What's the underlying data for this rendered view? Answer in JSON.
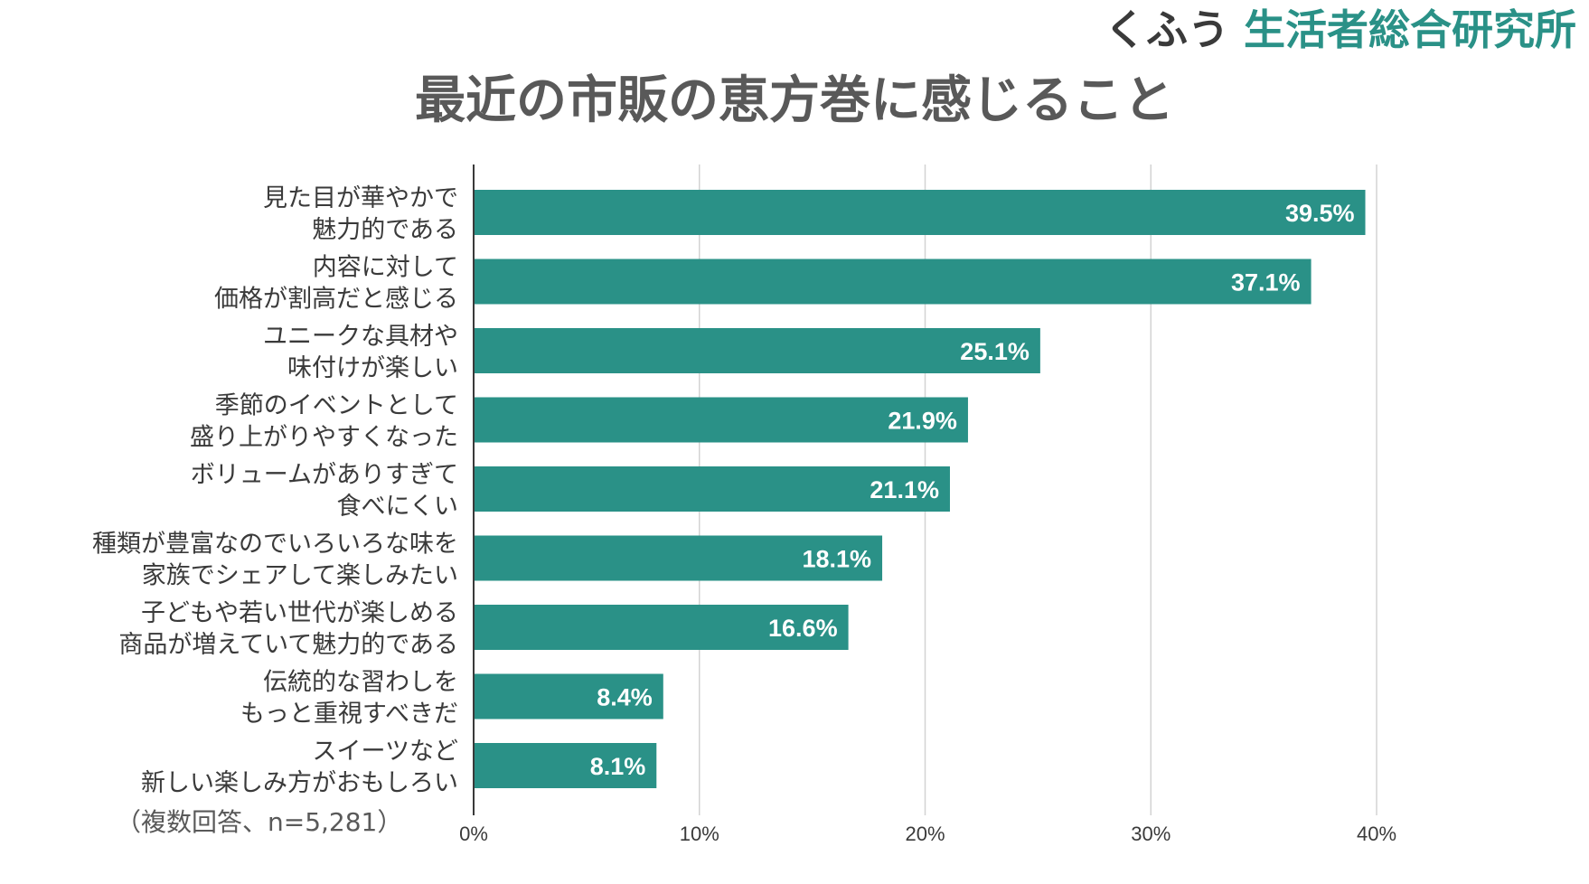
{
  "brand": {
    "prefix": "くふう",
    "name": "生活者総合研究所"
  },
  "note": "（複数回答、n=5,281）",
  "colors": {
    "bar": "#2a9187",
    "bar_label": "#ffffff",
    "category_text": "#3a3a3a",
    "tick_text": "#3a3a3a",
    "title": "#595959",
    "grid": "#d3d3d3",
    "axis": "#3a3a3a"
  },
  "chart_data": {
    "type": "bar",
    "orientation": "horizontal",
    "title": "最近の市販の恵方巻に感じること",
    "categories": [
      [
        "見た目が華やかで",
        "魅力的である"
      ],
      [
        "内容に対して",
        "価格が割高だと感じる"
      ],
      [
        "ユニークな具材や",
        "味付けが楽しい"
      ],
      [
        "季節のイベントとして",
        "盛り上がりやすくなった"
      ],
      [
        "ボリュームがありすぎて",
        "食べにくい"
      ],
      [
        "種類が豊富なのでいろいろな味を",
        "家族でシェアして楽しみたい"
      ],
      [
        "子どもや若い世代が楽しめる",
        "商品が増えていて魅力的である"
      ],
      [
        "伝統的な習わしを",
        "もっと重視すべきだ"
      ],
      [
        "スイーツなど",
        "新しい楽しみ方がおもしろい"
      ]
    ],
    "values": [
      39.5,
      37.1,
      25.1,
      21.9,
      21.1,
      18.1,
      16.6,
      8.4,
      8.1
    ],
    "value_labels": [
      "39.5%",
      "37.1%",
      "25.1%",
      "21.9%",
      "21.1%",
      "18.1%",
      "16.6%",
      "8.4%",
      "8.1%"
    ],
    "xlim": [
      0,
      40
    ],
    "xticks": [
      0,
      10,
      20,
      30,
      40
    ],
    "xtick_labels": [
      "0%",
      "10%",
      "20%",
      "30%",
      "40%"
    ],
    "xlabel": "",
    "ylabel": "",
    "grid": true
  }
}
